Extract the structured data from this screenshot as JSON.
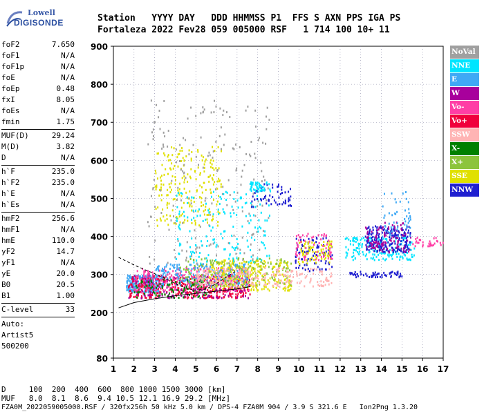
{
  "logo": {
    "line1": "Lowell",
    "line2": "DIGISONDE"
  },
  "header": {
    "labels": "Station   YYYY DAY   DDD HHMMSS P1  FFS S AXN PPS IGA PS",
    "values": "Fortaleza 2022 Fev28 059 005000 RSF   1 714 100 10+ 11"
  },
  "params": {
    "group1": [
      {
        "label": "foF2",
        "value": "7.650"
      },
      {
        "label": "foF1",
        "value": "N/A"
      },
      {
        "label": "foF1p",
        "value": "N/A"
      },
      {
        "label": "foE",
        "value": "N/A"
      },
      {
        "label": "foEp",
        "value": "0.48"
      },
      {
        "label": "fxI",
        "value": "8.05"
      },
      {
        "label": "foEs",
        "value": "N/A"
      },
      {
        "label": "fmin",
        "value": "1.75"
      }
    ],
    "group2": [
      {
        "label": "MUF(D)",
        "value": "29.24"
      },
      {
        "label": "M(D)",
        "value": "3.82"
      },
      {
        "label": "D",
        "value": "N/A"
      }
    ],
    "group3": [
      {
        "label": "h`F",
        "value": "235.0"
      },
      {
        "label": "h`F2",
        "value": "235.0"
      },
      {
        "label": "h`E",
        "value": "N/A"
      },
      {
        "label": "h`Es",
        "value": "N/A"
      }
    ],
    "group4": [
      {
        "label": "hmF2",
        "value": "256.6"
      },
      {
        "label": "hmF1",
        "value": "N/A"
      },
      {
        "label": "hmE",
        "value": "110.0"
      },
      {
        "label": "yF2",
        "value": "14.7"
      },
      {
        "label": "yF1",
        "value": "N/A"
      },
      {
        "label": "yE",
        "value": "20.0"
      },
      {
        "label": "B0",
        "value": "20.5"
      },
      {
        "label": "B1",
        "value": "1.00"
      }
    ],
    "group5": [
      {
        "label": "C-level",
        "value": "33"
      }
    ],
    "auto": [
      "Auto:",
      "Artist5",
      "500200"
    ]
  },
  "legend": [
    {
      "label": "NoVal",
      "bg": "#a0a0a0",
      "fg": "#ffffff"
    },
    {
      "label": "NNE",
      "bg": "#00e5ff",
      "fg": "#ffffff"
    },
    {
      "label": "E",
      "bg": "#3fa9f5",
      "fg": "#ffffff"
    },
    {
      "label": "W",
      "bg": "#a8009c",
      "fg": "#ffffff"
    },
    {
      "label": "Vo-",
      "bg": "#ff3ea5",
      "fg": "#ffffff"
    },
    {
      "label": "Vo+",
      "bg": "#f0003c",
      "fg": "#ffffff"
    },
    {
      "label": "SSW",
      "bg": "#ffb4b4",
      "fg": "#ffffff"
    },
    {
      "label": "X-",
      "bg": "#008000",
      "fg": "#ffffff"
    },
    {
      "label": "X+",
      "bg": "#8cc43c",
      "fg": "#ffffff"
    },
    {
      "label": "SSE",
      "bg": "#e0e000",
      "fg": "#ffffff"
    },
    {
      "label": "NNW",
      "bg": "#2020d0",
      "fg": "#ffffff"
    }
  ],
  "footer": {
    "line1": "D     100  200  400  600  800 1000 1500 3000 [km]",
    "line2": "MUF   8.0  8.1  8.6  9.4 10.5 12.1 16.9 29.2 [MHz]",
    "line3": "FZA0M_2022059005000.RSF / 320fx256h 50 kHz 5.0 km / DPS-4 FZA0M 904 / 3.9 S 321.6 E   Ion2Png 1.3.20"
  },
  "chart_data": {
    "type": "scatter",
    "xlim": [
      1,
      17
    ],
    "ylim": [
      80,
      900
    ],
    "xticks": [
      1,
      2,
      3,
      4,
      5,
      6,
      7,
      8,
      9,
      10,
      11,
      12,
      13,
      14,
      15,
      16,
      17
    ],
    "yticks": [
      80,
      200,
      300,
      400,
      500,
      600,
      700,
      800,
      900
    ],
    "grid": "dotted",
    "legend_position": "right",
    "profile_curve": {
      "x": [
        1.25,
        2,
        3,
        4,
        5,
        6,
        7,
        7.65
      ],
      "y": [
        212,
        226,
        236,
        244,
        250,
        256,
        262,
        268
      ]
    },
    "dashed_curve": {
      "x": [
        1.25,
        2,
        2.5,
        3,
        3.5,
        4,
        4.5,
        5,
        5.5,
        6,
        6.5,
        7
      ],
      "y": [
        345,
        325,
        313,
        302,
        290,
        276,
        264,
        258,
        262,
        276,
        294,
        310
      ]
    },
    "echo_clusters": [
      {
        "class": "E",
        "x": [
          1.6,
          3.2
        ],
        "y": [
          255,
          300
        ],
        "n": 300
      },
      {
        "class": "Vo+",
        "x": [
          1.7,
          7.6
        ],
        "y": [
          240,
          300
        ],
        "n": 420
      },
      {
        "class": "W",
        "x": [
          1.7,
          7.6
        ],
        "y": [
          240,
          300
        ],
        "n": 160
      },
      {
        "class": "Vo-",
        "x": [
          2.0,
          7.6
        ],
        "y": [
          255,
          320
        ],
        "n": 220
      },
      {
        "class": "E",
        "x": [
          3.0,
          7.5
        ],
        "y": [
          270,
          330
        ],
        "n": 220
      },
      {
        "class": "SSE",
        "x": [
          5.6,
          9.6
        ],
        "y": [
          260,
          340
        ],
        "n": 260
      },
      {
        "class": "X+",
        "x": [
          4.2,
          9.6
        ],
        "y": [
          270,
          345
        ],
        "n": 180
      },
      {
        "class": "X-",
        "x": [
          1.9,
          5.5
        ],
        "y": [
          240,
          290
        ],
        "n": 80
      },
      {
        "class": "SSW",
        "x": [
          5.0,
          11.6
        ],
        "y": [
          270,
          320
        ],
        "n": 230
      },
      {
        "class": "SSE",
        "x": [
          3.0,
          6.2
        ],
        "y": [
          430,
          640
        ],
        "n": 220
      },
      {
        "class": "NoVal",
        "x": [
          2.6,
          8.6
        ],
        "y": [
          330,
          760
        ],
        "n": 200
      },
      {
        "class": "NNE",
        "x": [
          4.0,
          8.6
        ],
        "y": [
          330,
          520
        ],
        "n": 170
      },
      {
        "class": "NNW",
        "x": [
          7.6,
          9.6
        ],
        "y": [
          480,
          540
        ],
        "n": 60
      },
      {
        "class": "NNE",
        "x": [
          7.6,
          8.6
        ],
        "y": [
          520,
          545
        ],
        "n": 45
      },
      {
        "class": "NNW",
        "x": [
          9.8,
          11.6
        ],
        "y": [
          310,
          400
        ],
        "n": 90
      },
      {
        "class": "SSE",
        "x": [
          9.8,
          11.6
        ],
        "y": [
          330,
          390
        ],
        "n": 80
      },
      {
        "class": "Vo-",
        "x": [
          9.8,
          11.6
        ],
        "y": [
          340,
          410
        ],
        "n": 60
      },
      {
        "class": "NNE",
        "x": [
          12.2,
          15.6
        ],
        "y": [
          340,
          400
        ],
        "n": 170
      },
      {
        "class": "NNW",
        "x": [
          13.2,
          15.4
        ],
        "y": [
          360,
          430
        ],
        "n": 200
      },
      {
        "class": "W",
        "x": [
          13.2,
          15.4
        ],
        "y": [
          360,
          440
        ],
        "n": 100
      },
      {
        "class": "NNW",
        "x": [
          12.4,
          15.0
        ],
        "y": [
          295,
          310
        ],
        "n": 60
      },
      {
        "class": "E",
        "x": [
          14.0,
          15.4
        ],
        "y": [
          400,
          520
        ],
        "n": 50
      },
      {
        "class": "Vo-",
        "x": [
          15.4,
          17.0
        ],
        "y": [
          375,
          400
        ],
        "n": 30
      }
    ]
  }
}
